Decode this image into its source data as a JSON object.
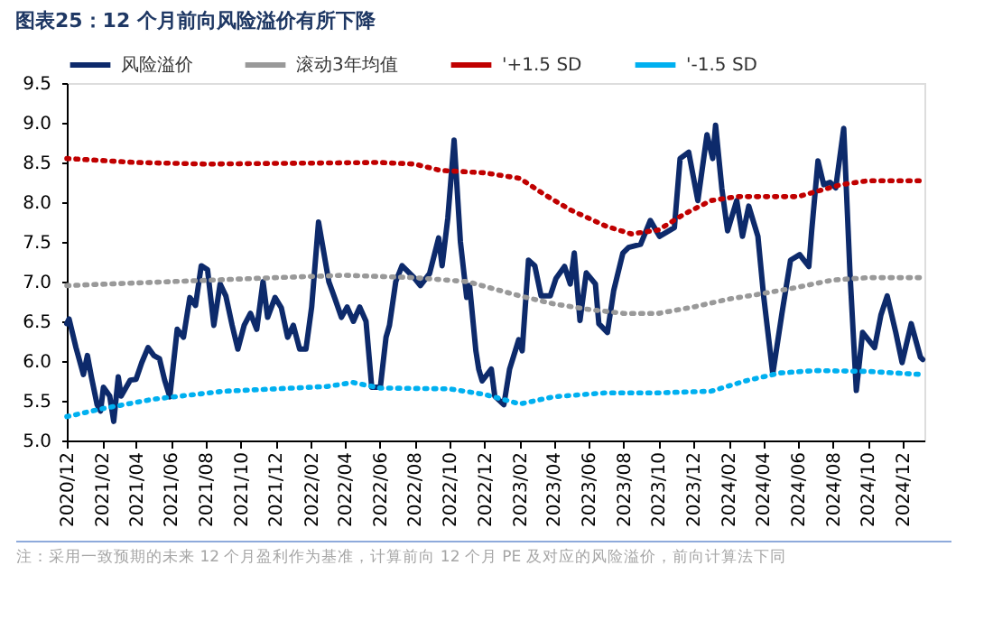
{
  "chart_data": {
    "type": "line",
    "title": "图表25：12 个月前向风险溢价有所下降",
    "annotations": [
      "注：采用一致预期的未来 12 个月盈利作为基准，计算前向 12 个月 PE 及对应的风险溢价，前向计算法下同"
    ],
    "xlim": [
      "2020-12-01",
      "2025-01-08"
    ],
    "xticks": [
      {
        "value": "2020-12-01",
        "label": "2020/12"
      },
      {
        "value": "2021-02-01",
        "label": "2021/02"
      },
      {
        "value": "2021-04-01",
        "label": "2021/04"
      },
      {
        "value": "2021-06-01",
        "label": "2021/06"
      },
      {
        "value": "2021-08-01",
        "label": "2021/08"
      },
      {
        "value": "2021-10-01",
        "label": "2021/10"
      },
      {
        "value": "2021-12-01",
        "label": "2021/12"
      },
      {
        "value": "2022-02-01",
        "label": "2022/02"
      },
      {
        "value": "2022-04-01",
        "label": "2022/04"
      },
      {
        "value": "2022-06-01",
        "label": "2022/06"
      },
      {
        "value": "2022-08-01",
        "label": "2022/08"
      },
      {
        "value": "2022-10-01",
        "label": "2022/10"
      },
      {
        "value": "2022-12-01",
        "label": "2022/12"
      },
      {
        "value": "2023-02-01",
        "label": "2023/02"
      },
      {
        "value": "2023-04-01",
        "label": "2023/04"
      },
      {
        "value": "2023-06-01",
        "label": "2023/06"
      },
      {
        "value": "2023-08-01",
        "label": "2023/08"
      },
      {
        "value": "2023-10-01",
        "label": "2023/10"
      },
      {
        "value": "2023-12-01",
        "label": "2023/12"
      },
      {
        "value": "2024-02-01",
        "label": "2024/02"
      },
      {
        "value": "2024-04-01",
        "label": "2024/04"
      },
      {
        "value": "2024-06-01",
        "label": "2024/06"
      },
      {
        "value": "2024-08-01",
        "label": "2024/08"
      },
      {
        "value": "2024-10-01",
        "label": "2024/10"
      },
      {
        "value": "2024-12-01",
        "label": "2024/12"
      }
    ],
    "ylim": [
      5.0,
      9.5
    ],
    "yticks": [
      {
        "value": 5,
        "label": "5.0"
      },
      {
        "value": 5.5,
        "label": "5.5"
      },
      {
        "value": 6,
        "label": "6.0"
      },
      {
        "value": 6.5,
        "label": "6.5"
      },
      {
        "value": 7,
        "label": "7.0"
      },
      {
        "value": 7.5,
        "label": "7.5"
      },
      {
        "value": 8,
        "label": "8.0"
      },
      {
        "value": 8.5,
        "label": "8.5"
      },
      {
        "value": 9,
        "label": "9.0"
      },
      {
        "value": 9.5,
        "label": "9.5"
      }
    ],
    "grid": false,
    "legend": "top",
    "marker": "none",
    "series": [
      {
        "name": "风险溢价",
        "color": "#0d2a6b",
        "line_style": "solid",
        "x": [
          "2020-12-01",
          "2020-12-05",
          "2020-12-17",
          "2020-12-30",
          "2021-01-06",
          "2021-01-13",
          "2021-01-23",
          "2021-01-29",
          "2021-02-03",
          "2021-02-14",
          "2021-02-21",
          "2021-03-01",
          "2021-03-06",
          "2021-03-22",
          "2021-04-01",
          "2021-04-11",
          "2021-04-22",
          "2021-05-02",
          "2021-05-12",
          "2021-05-21",
          "2021-05-30",
          "2021-06-12",
          "2021-06-23",
          "2021-07-04",
          "2021-07-14",
          "2021-07-24",
          "2021-08-04",
          "2021-08-15",
          "2021-08-26",
          "2021-09-05",
          "2021-09-16",
          "2021-09-26",
          "2021-10-07",
          "2021-10-18",
          "2021-10-29",
          "2021-11-09",
          "2021-11-17",
          "2021-11-30",
          "2021-12-11",
          "2021-12-22",
          "2022-01-01",
          "2022-01-12",
          "2022-01-23",
          "2022-02-02",
          "2022-02-14",
          "2022-03-04",
          "2022-03-15",
          "2022-03-26",
          "2022-04-05",
          "2022-04-16",
          "2022-04-27",
          "2022-05-08",
          "2022-05-18",
          "2022-06-02",
          "2022-06-12",
          "2022-06-18",
          "2022-06-29",
          "2022-07-10",
          "2022-07-31",
          "2022-08-11",
          "2022-08-27",
          "2022-09-12",
          "2022-09-18",
          "2022-09-28",
          "2022-10-09",
          "2022-10-20",
          "2022-10-31",
          "2022-11-05",
          "2022-11-16",
          "2022-11-21",
          "2022-11-27",
          "2022-12-13",
          "2022-12-19",
          "2023-01-04",
          "2023-01-14",
          "2023-01-30",
          "2023-02-05",
          "2023-02-16",
          "2023-02-27",
          "2023-03-10",
          "2023-03-26",
          "2023-04-05",
          "2023-04-20",
          "2023-04-30",
          "2023-05-07",
          "2023-05-17",
          "2023-05-28",
          "2023-06-13",
          "2023-06-19",
          "2023-07-04",
          "2023-07-15",
          "2023-07-31",
          "2023-08-10",
          "2023-08-31",
          "2023-09-17",
          "2023-10-03",
          "2023-10-29",
          "2023-11-08",
          "2023-11-23",
          "2023-12-09",
          "2023-12-25",
          "2024-01-04",
          "2024-01-09",
          "2024-01-20",
          "2024-01-30",
          "2024-02-15",
          "2024-02-25",
          "2024-03-07",
          "2024-03-23",
          "2024-04-02",
          "2024-04-18",
          "2024-05-04",
          "2024-05-19",
          "2024-06-04",
          "2024-06-20",
          "2024-06-25",
          "2024-07-06",
          "2024-07-16",
          "2024-07-27",
          "2024-08-06",
          "2024-08-20",
          "2024-08-31",
          "2024-09-11",
          "2024-09-22",
          "2024-10-13",
          "2024-10-24",
          "2024-11-04",
          "2024-11-19",
          "2024-11-30",
          "2024-12-16",
          "2025-01-01",
          "2025-01-05"
        ],
        "values": [
          6.47,
          6.53,
          6.17,
          5.83,
          6.07,
          5.8,
          5.45,
          5.37,
          5.67,
          5.56,
          5.24,
          5.8,
          5.56,
          5.76,
          5.77,
          5.98,
          6.17,
          6.07,
          6.03,
          5.76,
          5.55,
          6.4,
          6.3,
          6.8,
          6.7,
          7.2,
          7.15,
          6.45,
          6.97,
          6.82,
          6.45,
          6.15,
          6.45,
          6.6,
          6.4,
          7.0,
          6.55,
          6.8,
          6.67,
          6.3,
          6.45,
          6.15,
          6.15,
          6.68,
          7.75,
          7.0,
          6.78,
          6.55,
          6.68,
          6.5,
          6.68,
          6.5,
          5.67,
          5.67,
          6.3,
          6.45,
          7.0,
          7.2,
          7.05,
          6.95,
          7.1,
          7.55,
          7.2,
          7.8,
          8.78,
          7.5,
          6.8,
          6.95,
          6.13,
          5.9,
          5.75,
          5.9,
          5.56,
          5.45,
          5.9,
          6.27,
          6.13,
          7.27,
          7.2,
          6.82,
          6.82,
          7.04,
          7.19,
          6.97,
          7.36,
          6.51,
          7.11,
          6.97,
          6.47,
          6.36,
          6.89,
          7.36,
          7.43,
          7.47,
          7.77,
          7.57,
          7.68,
          8.55,
          8.63,
          8.02,
          8.85,
          8.55,
          8.97,
          8.17,
          7.64,
          8.02,
          7.57,
          7.95,
          7.57,
          6.82,
          5.84,
          6.6,
          7.27,
          7.34,
          7.19,
          7.64,
          8.52,
          8.22,
          8.25,
          8.18,
          8.93,
          7.1,
          5.63,
          6.36,
          6.17,
          6.58,
          6.82,
          6.36,
          5.98,
          6.47,
          6.05,
          6.02
        ]
      },
      {
        "name": "滚动3年均值",
        "color": "#999999",
        "line_style": "dotted",
        "x": [
          "2020-12-01",
          "2021-06-01",
          "2021-12-01",
          "2022-04-01",
          "2022-08-01",
          "2022-11-01",
          "2023-02-01",
          "2023-04-01",
          "2023-06-01",
          "2023-08-01",
          "2023-10-01",
          "2023-12-01",
          "2024-02-01",
          "2024-04-01",
          "2024-06-01",
          "2024-08-01",
          "2024-10-01",
          "2025-01-05"
        ],
        "values": [
          6.95,
          7.0,
          7.05,
          7.08,
          7.05,
          7.0,
          6.82,
          6.72,
          6.65,
          6.6,
          6.6,
          6.68,
          6.78,
          6.85,
          6.93,
          7.02,
          7.05,
          7.05
        ]
      },
      {
        "name": "'+1.5 SD",
        "color": "#c00000",
        "line_style": "dotted",
        "x": [
          "2020-12-01",
          "2021-04-01",
          "2021-08-01",
          "2022-06-01",
          "2022-08-01",
          "2022-09-15",
          "2022-12-01",
          "2023-02-01",
          "2023-03-15",
          "2023-05-01",
          "2023-07-01",
          "2023-08-15",
          "2023-10-01",
          "2023-11-15",
          "2024-01-01",
          "2024-02-15",
          "2024-06-01",
          "2024-08-15",
          "2024-10-01",
          "2025-01-05"
        ],
        "values": [
          8.55,
          8.5,
          8.48,
          8.5,
          8.48,
          8.4,
          8.37,
          8.3,
          8.1,
          7.9,
          7.7,
          7.6,
          7.65,
          7.85,
          8.02,
          8.07,
          8.07,
          8.22,
          8.27,
          8.27
        ]
      },
      {
        "name": "'-1.5 SD",
        "color": "#00b0f0",
        "line_style": "dotted",
        "x": [
          "2020-12-01",
          "2021-02-01",
          "2021-05-01",
          "2021-09-01",
          "2021-12-01",
          "2022-03-01",
          "2022-04-15",
          "2022-06-01",
          "2022-10-01",
          "2022-12-01",
          "2023-02-01",
          "2023-04-01",
          "2023-07-01",
          "2023-10-01",
          "2024-01-01",
          "2024-03-01",
          "2024-05-01",
          "2024-07-01",
          "2024-10-01",
          "2025-01-05"
        ],
        "values": [
          5.3,
          5.4,
          5.52,
          5.62,
          5.65,
          5.68,
          5.73,
          5.66,
          5.65,
          5.58,
          5.46,
          5.55,
          5.6,
          5.6,
          5.62,
          5.75,
          5.85,
          5.88,
          5.87,
          5.83
        ]
      }
    ]
  }
}
